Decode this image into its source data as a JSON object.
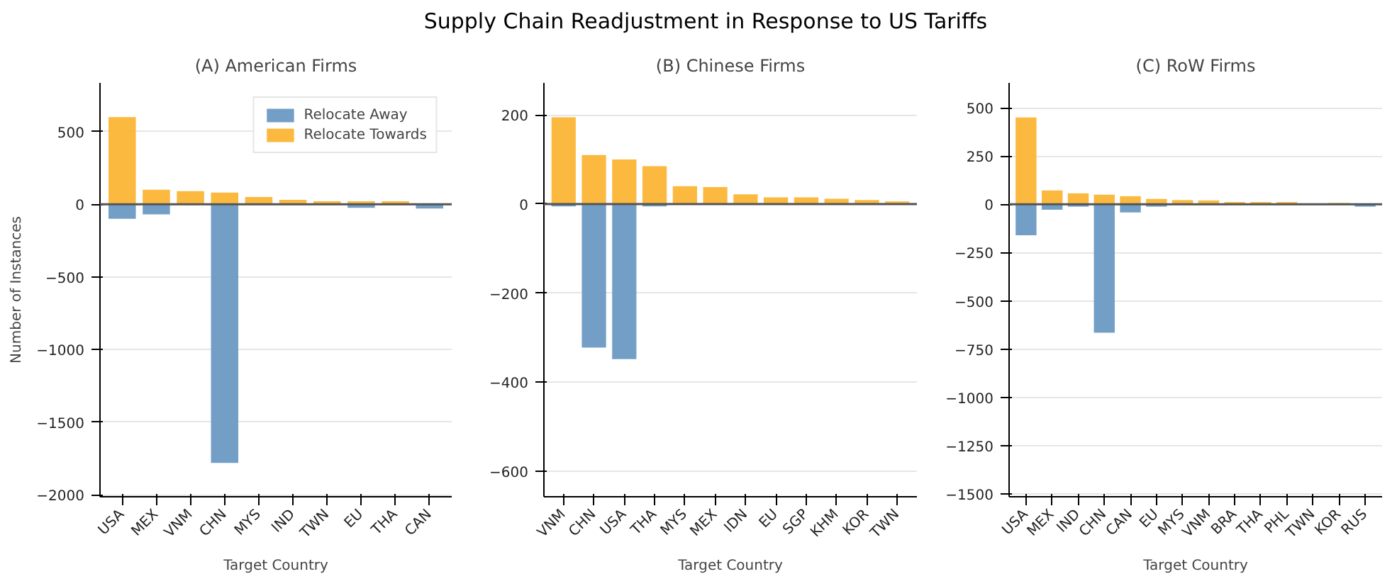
{
  "chart_data": [
    {
      "type": "bar",
      "title": "(A) American Firms",
      "xlabel": "Target Country",
      "ylabel": "Number of Instances",
      "annotations": [
        "Supply Chain Readjustment in Response to US Tariffs"
      ],
      "categories": [
        "USA",
        "MEX",
        "VNM",
        "CHN",
        "MYS",
        "IND",
        "TWN",
        "EU",
        "THA",
        "CAN"
      ],
      "series": [
        {
          "name": "Relocate Away",
          "color": "#6b9ac4",
          "values": [
            -100,
            -70,
            0,
            -1780,
            0,
            0,
            0,
            -25,
            0,
            -30
          ]
        },
        {
          "name": "Relocate Towards",
          "color": "#fbb535",
          "values": [
            600,
            100,
            90,
            80,
            50,
            30,
            20,
            20,
            20,
            null
          ]
        }
      ],
      "ylim": [
        -2013,
        835
      ],
      "yticks": [
        {
          "value": -2000,
          "label": "−2000"
        },
        {
          "value": -1500,
          "label": "−1500"
        },
        {
          "value": -1000,
          "label": "−1000"
        },
        {
          "value": -500,
          "label": "−500"
        },
        0,
        500
      ],
      "ref_lines": [
        {
          "axis": "y",
          "value": 0,
          "color": "#555555"
        }
      ],
      "grid": "y",
      "legend": "top right"
    },
    {
      "type": "bar",
      "title": "(B) Chinese Firms",
      "xlabel": "Target Country",
      "categories": [
        "VNM",
        "CHN",
        "USA",
        "THA",
        "MYS",
        "MEX",
        "IDN",
        "EU",
        "SGP",
        "KHM",
        "KOR",
        "TWN"
      ],
      "series": [
        {
          "color": "#6b9ac4",
          "values": [
            -5,
            -322,
            -348,
            -5,
            0,
            0,
            0,
            0,
            0,
            0,
            0,
            0
          ]
        },
        {
          "color": "#fbb535",
          "values": [
            195,
            110,
            100,
            85,
            40,
            38,
            22,
            15,
            15,
            12,
            9,
            6
          ]
        }
      ],
      "ylim": [
        -657,
        272
      ],
      "yticks": [
        {
          "value": -600,
          "label": "−600"
        },
        {
          "value": -400,
          "label": "−400"
        },
        {
          "value": -200,
          "label": "−200"
        },
        0,
        200
      ],
      "ref_lines": [
        {
          "axis": "y",
          "value": 0,
          "color": "#555555"
        }
      ],
      "grid": "y"
    },
    {
      "type": "bar",
      "title": "(C) RoW Firms",
      "xlabel": "Target Country",
      "categories": [
        "USA",
        "MEX",
        "IND",
        "CHN",
        "CAN",
        "EU",
        "MYS",
        "VNM",
        "BRA",
        "THA",
        "PHL",
        "TWN",
        "KOR",
        "RUS"
      ],
      "series": [
        {
          "color": "#6b9ac4",
          "values": [
            -160,
            -28,
            -12,
            -665,
            -42,
            -12,
            0,
            0,
            0,
            0,
            0,
            0,
            0,
            -12
          ]
        },
        {
          "color": "#fbb535",
          "values": [
            450,
            72,
            57,
            50,
            42,
            28,
            22,
            20,
            12,
            12,
            12,
            null,
            7,
            0
          ]
        }
      ],
      "ylim": [
        -1515,
        629
      ],
      "yticks": [
        {
          "value": -1500,
          "label": "−1500"
        },
        {
          "value": -1250,
          "label": "−1250"
        },
        {
          "value": -1000,
          "label": "−1000"
        },
        {
          "value": -750,
          "label": "−750"
        },
        {
          "value": -500,
          "label": "−500"
        },
        {
          "value": -250,
          "label": "−250"
        },
        0,
        250,
        500
      ],
      "ref_lines": [
        {
          "axis": "y",
          "value": 0,
          "color": "#555555"
        }
      ],
      "grid": "y"
    }
  ]
}
